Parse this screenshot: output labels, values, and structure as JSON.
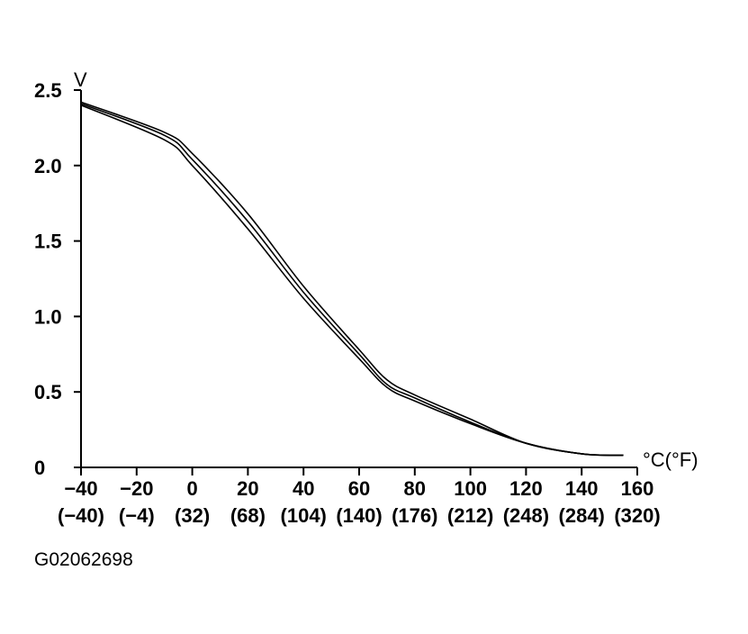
{
  "figure_id": "G02062698",
  "colors": {
    "line": "#000000",
    "background": "#ffffff"
  },
  "chart_data": {
    "type": "line",
    "title": "",
    "ylabel": "V",
    "xlabel": "°C(°F)",
    "xlim": [
      -40,
      160
    ],
    "ylim": [
      0,
      2.5
    ],
    "grid": false,
    "legend": "none",
    "x_ticks": [
      "−40",
      "−20",
      "0",
      "20",
      "40",
      "60",
      "80",
      "100",
      "120",
      "140",
      "160"
    ],
    "x_ticks_fahrenheit": [
      "(−40)",
      "(−4)",
      "(32)",
      "(68)",
      "(104)",
      "(140)",
      "(176)",
      "(212)",
      "(248)",
      "(284)",
      "(320)"
    ],
    "y_ticks": [
      "2.5",
      "2.0",
      "1.5",
      "1.0",
      "0.5",
      "0"
    ],
    "x": [
      -40,
      -10,
      0,
      20,
      40,
      60,
      70,
      80,
      100,
      120,
      140,
      155
    ],
    "series": [
      {
        "values": [
          2.42,
          2.22,
          2.08,
          1.68,
          1.2,
          0.78,
          0.58,
          0.48,
          0.32,
          0.16,
          0.09,
          0.08
        ]
      },
      {
        "values": [
          2.41,
          2.2,
          2.04,
          1.63,
          1.16,
          0.75,
          0.55,
          0.46,
          0.3,
          0.16,
          0.09,
          0.08
        ]
      },
      {
        "values": [
          2.4,
          2.17,
          2.0,
          1.58,
          1.12,
          0.72,
          0.53,
          0.44,
          0.29,
          0.16,
          0.09,
          0.08
        ]
      }
    ]
  }
}
